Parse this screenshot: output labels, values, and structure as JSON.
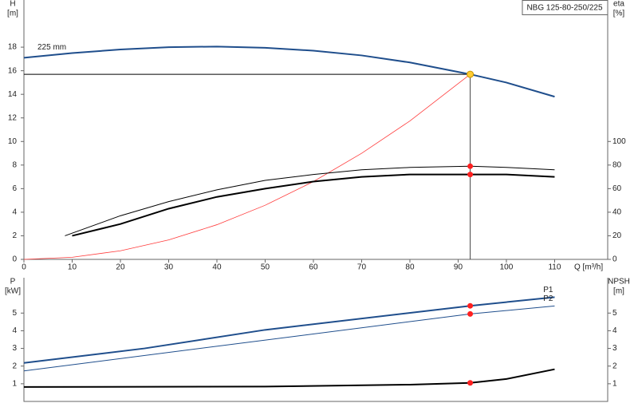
{
  "chart_data": [
    {
      "type": "line",
      "title": "NBG 125-80-250/225",
      "y_label": "H",
      "y_unit": "[m]",
      "y2_label": "eta",
      "y2_unit": "[%]",
      "x_label": "Q [m³/h]",
      "xlim": [
        0,
        121
      ],
      "xticks": [
        0,
        10,
        20,
        30,
        40,
        50,
        60,
        70,
        80,
        90,
        100,
        110
      ],
      "ylim": [
        0,
        22
      ],
      "yticks": [
        0,
        2,
        4,
        6,
        8,
        10,
        12,
        14,
        16,
        18
      ],
      "y2lim": [
        0,
        220
      ],
      "y2ticks": [
        0,
        20,
        40,
        60,
        80,
        100
      ],
      "series": [
        {
          "name": "225 mm",
          "color": "#1f4e8c",
          "line_width": 2,
          "axis": "y",
          "x": [
            0,
            10,
            20,
            30,
            40,
            50,
            60,
            70,
            80,
            90,
            92.5,
            100,
            110
          ],
          "values": [
            17.1,
            17.5,
            17.8,
            18.0,
            18.05,
            17.95,
            17.7,
            17.3,
            16.7,
            15.9,
            15.7,
            15.0,
            13.8
          ]
        },
        {
          "color": "#ff3b3b",
          "line_width": 0.8,
          "axis": "y",
          "x": [
            0,
            10,
            20,
            30,
            40,
            50,
            60,
            70,
            80,
            92.5
          ],
          "values": [
            0,
            0.18,
            0.73,
            1.65,
            2.94,
            4.59,
            6.6,
            9.0,
            11.74,
            15.7
          ]
        },
        {
          "color": "#000000",
          "line_width": 1,
          "axis": "y2",
          "x": [
            8.5,
            20,
            30,
            40,
            50,
            60,
            70,
            80,
            92.5,
            100,
            110
          ],
          "values": [
            20,
            37,
            49,
            59,
            67,
            72,
            76,
            78,
            79,
            78,
            76
          ]
        },
        {
          "color": "#000000",
          "line_width": 2,
          "axis": "y2",
          "x": [
            10,
            20,
            30,
            40,
            50,
            60,
            70,
            80,
            92.5,
            100,
            110
          ],
          "values": [
            20,
            30,
            43,
            53,
            60,
            66,
            70,
            72,
            72,
            72,
            70
          ]
        }
      ],
      "operating_point": {
        "x": 92.5,
        "y": 15.7,
        "color": "#ffcc33"
      },
      "points": [
        {
          "x": 92.5,
          "y": 79,
          "axis": "y2",
          "color": "#ff2020"
        },
        {
          "x": 92.5,
          "y": 72,
          "axis": "y2",
          "color": "#ff2020"
        }
      ]
    },
    {
      "type": "line",
      "y_label": "P",
      "y_unit": "[kW]",
      "y2_label": "NPSH",
      "y2_unit": "[m]",
      "xlim": [
        0,
        121
      ],
      "ylim": [
        0,
        7
      ],
      "yticks": [
        1,
        2,
        3,
        4,
        5
      ],
      "y2lim": [
        0,
        7
      ],
      "y2ticks": [
        1,
        2,
        3,
        4,
        5
      ],
      "series": [
        {
          "name": "P1",
          "color": "#1f4e8c",
          "line_width": 2,
          "axis": "y",
          "x": [
            0,
            25,
            50,
            92.5,
            110
          ],
          "values": [
            2.18,
            3.0,
            4.05,
            5.41,
            5.9
          ]
        },
        {
          "name": "P2",
          "color": "#1f4e8c",
          "line_width": 1,
          "axis": "y",
          "x": [
            0,
            92.5,
            110
          ],
          "values": [
            1.73,
            4.95,
            5.4
          ]
        },
        {
          "color": "#000000",
          "line_width": 2,
          "axis": "y2",
          "x": [
            0,
            50,
            80,
            92.5,
            100,
            110
          ],
          "values": [
            0.82,
            0.84,
            0.95,
            1.05,
            1.27,
            1.82
          ]
        }
      ],
      "points": [
        {
          "x": 92.5,
          "y": 5.41,
          "axis": "y",
          "color": "#ff2020"
        },
        {
          "x": 92.5,
          "y": 4.95,
          "axis": "y",
          "color": "#ff2020"
        },
        {
          "x": 92.5,
          "y": 1.05,
          "axis": "y2",
          "color": "#ff2020"
        }
      ]
    }
  ]
}
